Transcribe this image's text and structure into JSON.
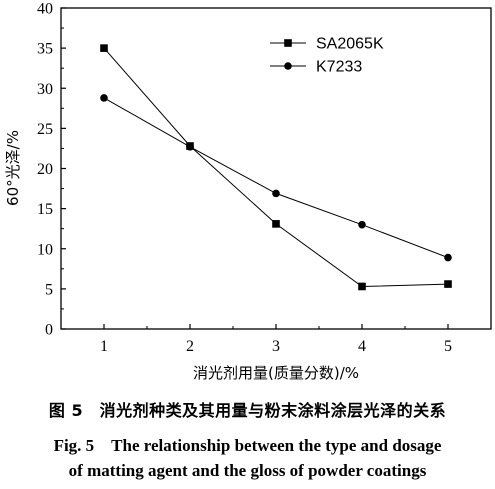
{
  "chart_data": {
    "type": "line",
    "xlabel": "消光剂用量(质量分数)/%",
    "ylabel": "60°光泽/%",
    "x": [
      1,
      2,
      3,
      4,
      5
    ],
    "xlim": [
      0.5,
      5.5
    ],
    "ylim": [
      0,
      40
    ],
    "xticks": [
      "1",
      "2",
      "3",
      "4",
      "5"
    ],
    "yticks": [
      "0",
      "5",
      "10",
      "15",
      "20",
      "25",
      "30",
      "35",
      "40"
    ],
    "grid": false,
    "legend_position": "top-right",
    "series": [
      {
        "name": "SA2065K",
        "marker": "square",
        "values": [
          35.0,
          22.8,
          13.1,
          5.3,
          5.6
        ]
      },
      {
        "name": "K7233",
        "marker": "circle",
        "values": [
          28.8,
          22.7,
          16.9,
          13.0,
          8.9
        ]
      }
    ]
  },
  "caption": {
    "chinese": "图 5　消光剂种类及其用量与粉末涂料涂层光泽的关系",
    "english_line1": "Fig. 5　The relationship between the type and dosage",
    "english_line2": "of matting agent and the gloss of powder coatings"
  },
  "colors": {
    "line": "#000000",
    "background": "#ffffff"
  }
}
